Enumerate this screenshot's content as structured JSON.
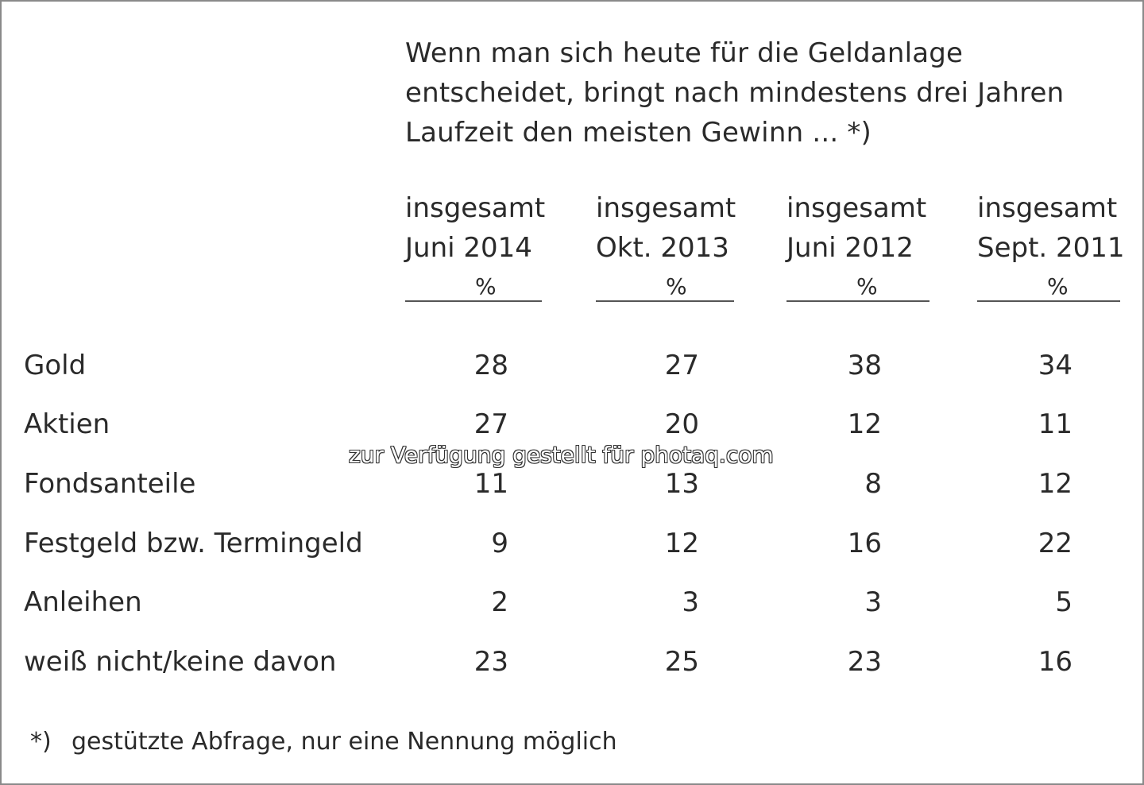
{
  "chart_data": {
    "type": "table",
    "title": "Wenn man sich heute für die Geldanlage entscheidet, bringt nach mindestens drei Jahren Laufzeit den meisten Gewinn ... *)",
    "columns": [
      {
        "line1": "insgesamt",
        "line2": "Juni 2014",
        "unit": "%"
      },
      {
        "line1": "insgesamt",
        "line2": "Okt. 2013",
        "unit": "%"
      },
      {
        "line1": "insgesamt",
        "line2": "Juni 2012",
        "unit": "%"
      },
      {
        "line1": "insgesamt",
        "line2": "Sept. 2011",
        "unit": "%"
      }
    ],
    "rows": [
      {
        "label": "Gold",
        "values": [
          "28",
          "27",
          "38",
          "34"
        ]
      },
      {
        "label": "Aktien",
        "values": [
          "27",
          "20",
          "12",
          "11"
        ]
      },
      {
        "label": "Fondsanteile",
        "values": [
          "11",
          "13",
          "8",
          "12"
        ]
      },
      {
        "label": "Festgeld bzw. Termingeld",
        "values": [
          "9",
          "12",
          "16",
          "22"
        ]
      },
      {
        "label": "Anleihen",
        "values": [
          "2",
          "3",
          "3",
          "5"
        ]
      },
      {
        "label": "weiß nicht/keine davon",
        "values": [
          "23",
          "25",
          "23",
          "16"
        ]
      }
    ],
    "footnote": {
      "marker": "*)",
      "text": "gestützte Abfrage, nur eine Nennung möglich"
    }
  },
  "watermark": "zur Verfügung gestellt für photaq.com"
}
